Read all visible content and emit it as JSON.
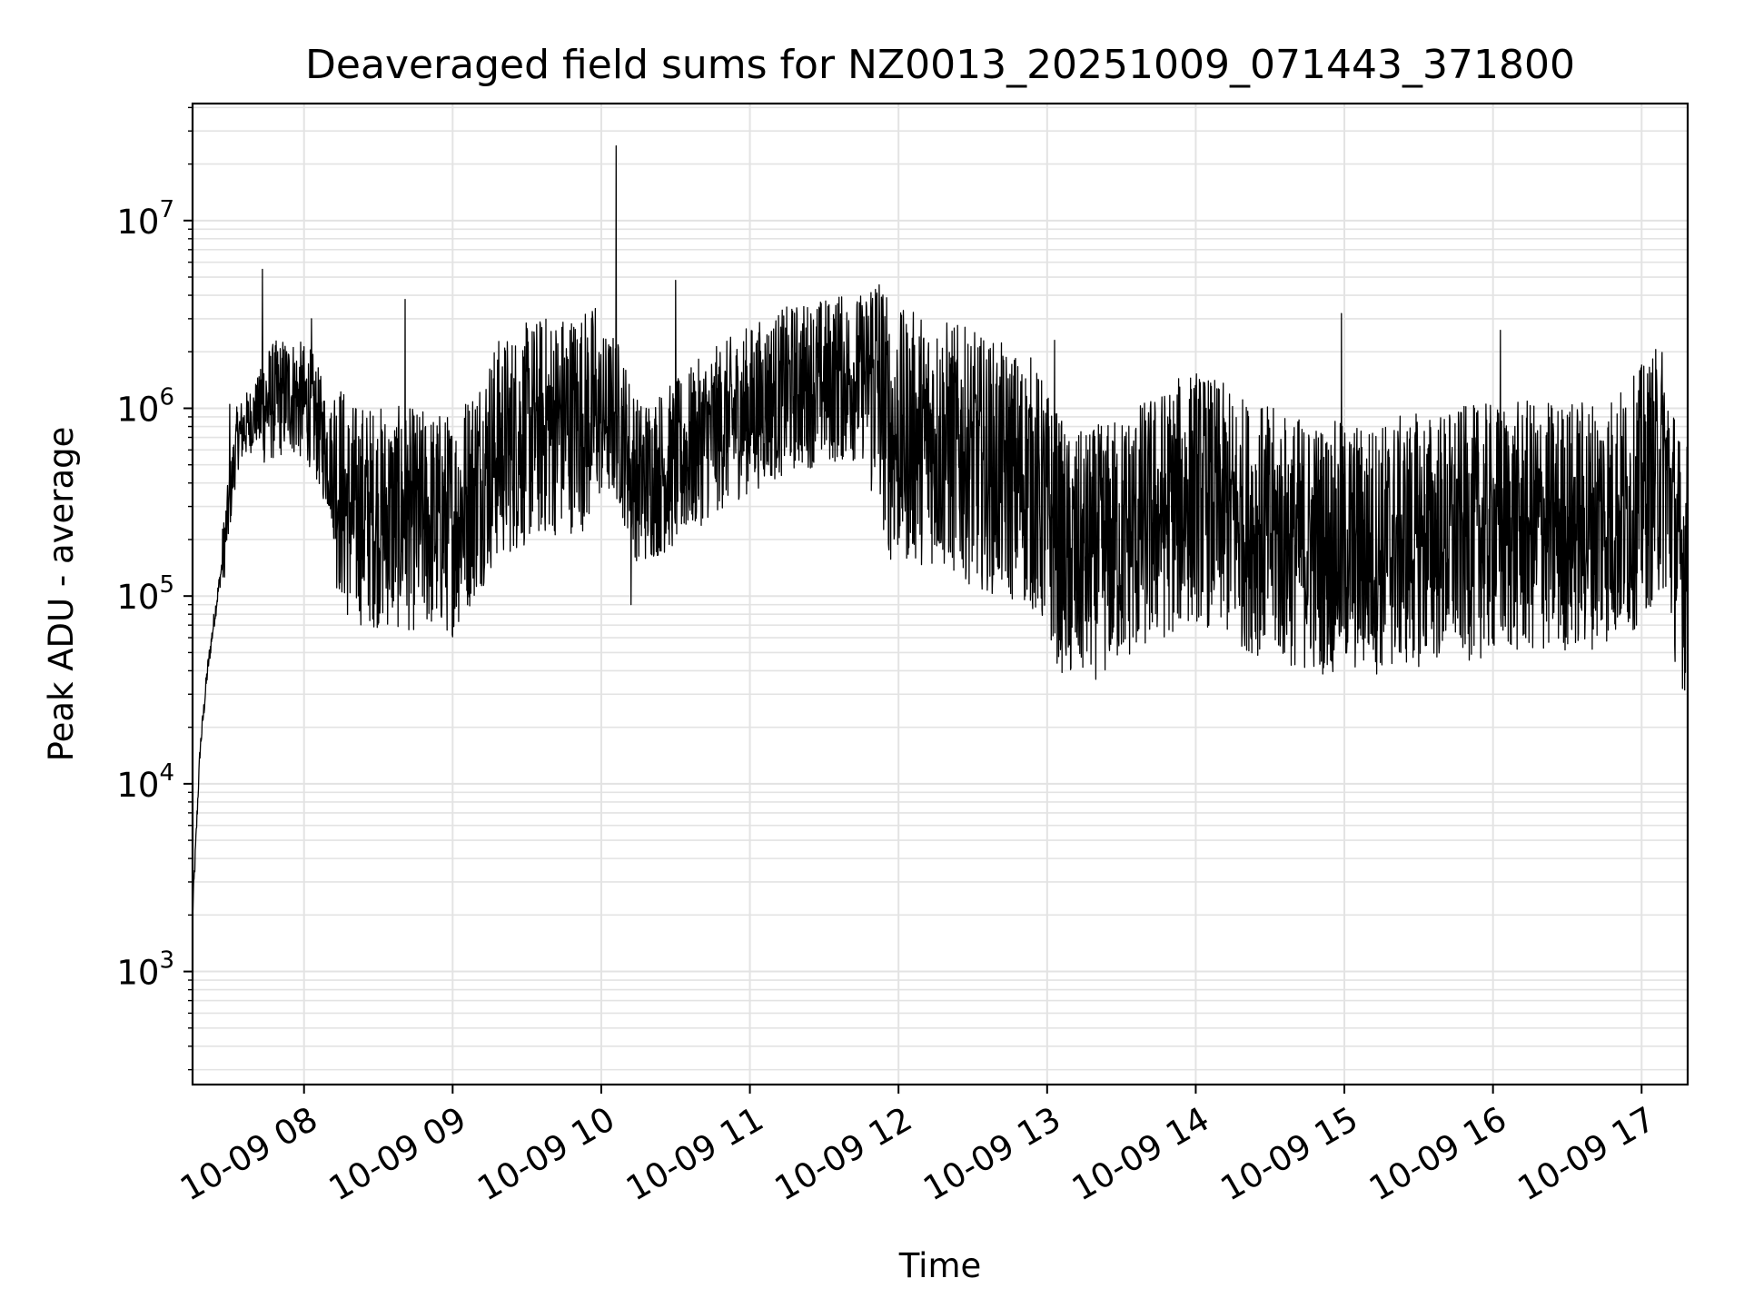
{
  "chart_data": {
    "type": "line",
    "title": "Deaveraged field sums for NZ0013_20251009_071443_371800",
    "xlabel": "Time",
    "ylabel": "Peak ADU - average",
    "yscale": "log",
    "ylim": [
      250,
      42000000
    ],
    "xlim_hours": [
      7.25,
      17.31
    ],
    "grid": true,
    "line_color": "#000000",
    "grid_color": "#e3e3e3",
    "x_ticks": [
      {
        "value": 8,
        "label": "10-09 08"
      },
      {
        "value": 9,
        "label": "10-09 09"
      },
      {
        "value": 10,
        "label": "10-09 10"
      },
      {
        "value": 11,
        "label": "10-09 11"
      },
      {
        "value": 12,
        "label": "10-09 12"
      },
      {
        "value": 13,
        "label": "10-09 13"
      },
      {
        "value": 14,
        "label": "10-09 14"
      },
      {
        "value": 15,
        "label": "10-09 15"
      },
      {
        "value": 16,
        "label": "10-09 16"
      },
      {
        "value": 17,
        "label": "10-09 17"
      }
    ],
    "y_ticks": [
      {
        "value": 1000,
        "base": "10",
        "exp": "3"
      },
      {
        "value": 10000,
        "base": "10",
        "exp": "4"
      },
      {
        "value": 100000,
        "base": "10",
        "exp": "5"
      },
      {
        "value": 1000000,
        "base": "10",
        "exp": "6"
      },
      {
        "value": 10000000,
        "base": "10",
        "exp": "7"
      }
    ],
    "series": [
      {
        "name": "Peak ADU - average",
        "envelope_hours": [
          7.25,
          7.3,
          7.35,
          7.4,
          7.45,
          7.55,
          7.7,
          7.9,
          8.05,
          8.3,
          8.6,
          8.9,
          9.0,
          9.3,
          9.6,
          9.95,
          10.1,
          10.25,
          10.5,
          10.7,
          11.0,
          11.3,
          11.5,
          11.85,
          11.95,
          12.2,
          12.6,
          12.9,
          13.15,
          13.4,
          13.7,
          14.0,
          14.3,
          14.6,
          14.9,
          15.2,
          15.5,
          15.9,
          16.2,
          16.6,
          16.9,
          17.05,
          17.15,
          17.25,
          17.31
        ],
        "envelope_values": [
          2000,
          15000,
          40000,
          80000,
          150000,
          700000,
          1000000,
          1200000,
          1000000,
          280000,
          260000,
          250000,
          240000,
          600000,
          800000,
          900000,
          900000,
          400000,
          500000,
          700000,
          1000000,
          1300000,
          1400000,
          1500000,
          700000,
          700000,
          500000,
          400000,
          150000,
          180000,
          250000,
          350000,
          250000,
          200000,
          180000,
          180000,
          200000,
          220000,
          230000,
          240000,
          280000,
          400000,
          500000,
          160000,
          140000
        ],
        "spikes": [
          {
            "x": 7.5,
            "value": 1050000
          },
          {
            "x": 7.72,
            "value": 5500000
          },
          {
            "x": 8.05,
            "value": 3000000
          },
          {
            "x": 8.68,
            "value": 3800000
          },
          {
            "x": 9.96,
            "value": 3400000
          },
          {
            "x": 10.1,
            "value": 25000000
          },
          {
            "x": 10.5,
            "value": 4800000
          },
          {
            "x": 10.2,
            "value": 90000
          },
          {
            "x": 11.6,
            "value": 3900000
          },
          {
            "x": 13.05,
            "value": 2300000
          },
          {
            "x": 13.15,
            "value": 55000
          },
          {
            "x": 14.98,
            "value": 3200000
          },
          {
            "x": 16.05,
            "value": 2600000
          },
          {
            "x": 17.0,
            "value": 1700000
          }
        ]
      }
    ]
  }
}
